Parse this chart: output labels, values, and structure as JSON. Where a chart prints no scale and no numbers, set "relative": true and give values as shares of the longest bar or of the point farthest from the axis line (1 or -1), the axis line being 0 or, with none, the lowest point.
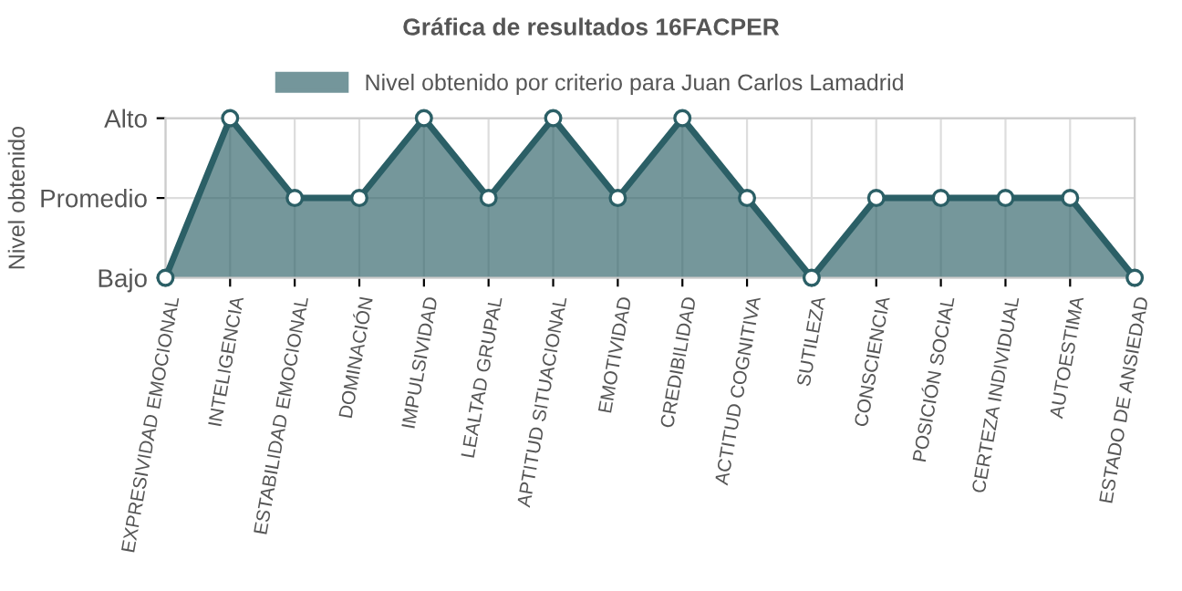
{
  "chart_data": {
    "type": "area",
    "title": "Gráfica de resultados 16FACPER",
    "ylabel": "Nivel obtenido",
    "categories": [
      "EXPRESIVIDAD EMOCIONAL",
      "INTELIGENCIA",
      "ESTABILIDAD EMOCIONAL",
      "DOMINACIÓN",
      "IMPULSIVIDAD",
      "LEALTAD GRUPAL",
      "APTITUD SITUACIONAL",
      "EMOTIVIDAD",
      "CREDIBILIDAD",
      "ACTITUD COGNITIVA",
      "SUTILEZA",
      "CONSCIENCIA",
      "POSICIÓN SOCIAL",
      "CERTEZA INDIVIDUAL",
      "AUTOESTIMA",
      "ESTADO DE ANSIEDAD"
    ],
    "series": [
      {
        "name": "Nivel obtenido por criterio para Juan Carlos Lamadrid",
        "color": "#2b5f66",
        "values": [
          0,
          1,
          0.5,
          0.5,
          1,
          0.5,
          1,
          0.5,
          1,
          0.5,
          0,
          0.5,
          0.5,
          0.5,
          0.5,
          0
        ]
      }
    ],
    "relative": true,
    "y_categories": [
      "Alto",
      "Promedio",
      "Bajo"
    ],
    "grid": true,
    "legend": "top",
    "marker": "circle",
    "line_style": "solid"
  }
}
